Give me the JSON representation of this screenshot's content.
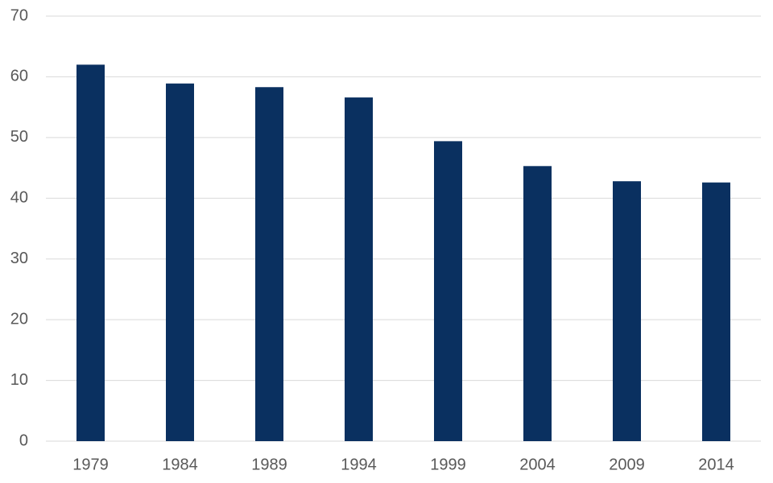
{
  "chart_data": {
    "type": "bar",
    "categories": [
      "1979",
      "1984",
      "1989",
      "1994",
      "1999",
      "2004",
      "2009",
      "2014"
    ],
    "values": [
      62.0,
      58.9,
      58.3,
      56.6,
      49.4,
      45.3,
      42.8,
      42.6
    ],
    "color": "#0a3060",
    "ylim": [
      0,
      70
    ],
    "yticks": [
      0,
      10,
      20,
      30,
      40,
      50,
      60,
      70
    ],
    "grid": true
  }
}
